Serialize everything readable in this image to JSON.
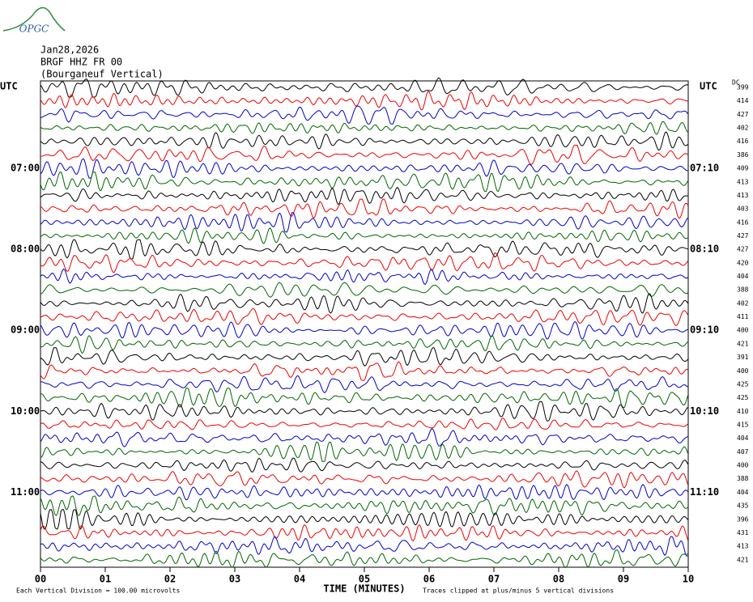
{
  "logo": "OPGC",
  "header": {
    "date": "Jan28,2026",
    "station": "BRGF HHZ FR 00",
    "location": "(Bourganeuf Vertical)"
  },
  "left_zone": "UTC",
  "right_zone": "UTC",
  "dc_heading": "DC",
  "rows": [
    {
      "dc": "399"
    },
    {
      "dc": "414"
    },
    {
      "dc": "427"
    },
    {
      "dc": "402"
    },
    {
      "dc": "416"
    },
    {
      "dc": "386"
    },
    {
      "dc": "409",
      "left": "07:00",
      "right": "07:10"
    },
    {
      "dc": "413"
    },
    {
      "dc": "413"
    },
    {
      "dc": "403"
    },
    {
      "dc": "416"
    },
    {
      "dc": "427"
    },
    {
      "dc": "427",
      "left": "08:00",
      "right": "08:10"
    },
    {
      "dc": "420"
    },
    {
      "dc": "404"
    },
    {
      "dc": "388"
    },
    {
      "dc": "402"
    },
    {
      "dc": "411"
    },
    {
      "dc": "400",
      "left": "09:00",
      "right": "09:10"
    },
    {
      "dc": "421"
    },
    {
      "dc": "391"
    },
    {
      "dc": "400"
    },
    {
      "dc": "425"
    },
    {
      "dc": "425"
    },
    {
      "dc": "410",
      "left": "10:00",
      "right": "10:10"
    },
    {
      "dc": "415"
    },
    {
      "dc": "404"
    },
    {
      "dc": "407"
    },
    {
      "dc": "400"
    },
    {
      "dc": "388"
    },
    {
      "dc": "404",
      "left": "11:00",
      "right": "11:10"
    },
    {
      "dc": "435"
    },
    {
      "dc": "396"
    },
    {
      "dc": "431"
    },
    {
      "dc": "413"
    },
    {
      "dc": "421"
    }
  ],
  "x_axis": {
    "ticks": [
      "00",
      "01",
      "02",
      "03",
      "04",
      "05",
      "06",
      "07",
      "08",
      "09",
      "10"
    ],
    "label": "TIME (MINUTES)"
  },
  "footer": {
    "scale": "Each Vertical Division =  100.00 microvolts",
    "clip": "Traces clipped at plus/minus 5 vertical divisions"
  }
}
